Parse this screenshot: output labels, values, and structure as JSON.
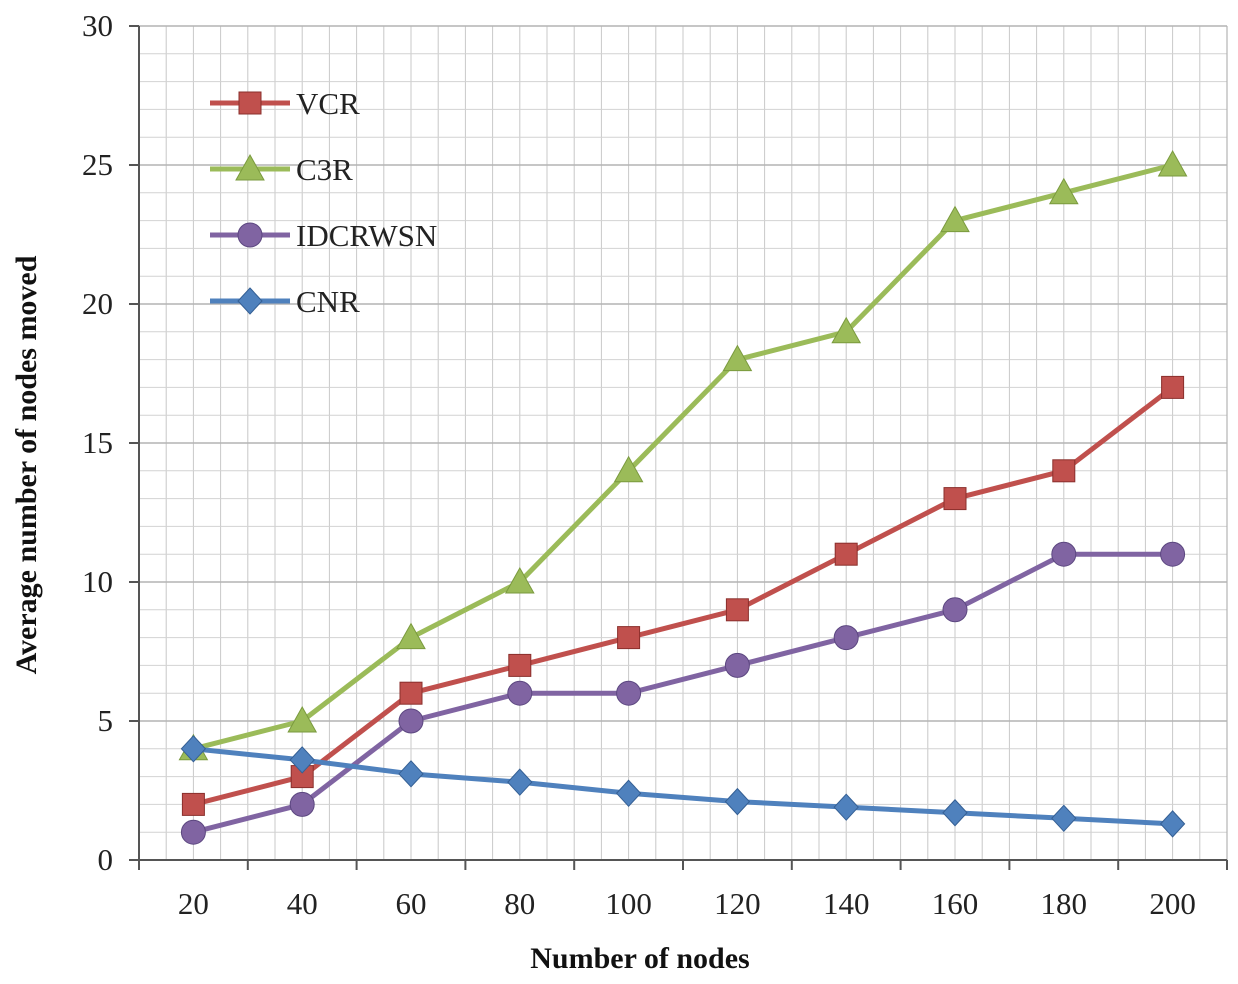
{
  "chart_data": {
    "type": "line",
    "title": "",
    "xlabel": "Number  of nodes",
    "ylabel": "Average number  of nodes moved",
    "x": [
      20,
      40,
      60,
      80,
      100,
      120,
      140,
      160,
      180,
      200
    ],
    "x_tick_labels": [
      "20",
      "40",
      "60",
      "80",
      "100",
      "120",
      "140",
      "160",
      "180",
      "200"
    ],
    "ylim": [
      0,
      30
    ],
    "y_ticks": [
      0,
      5,
      10,
      15,
      20,
      25,
      30
    ],
    "y_tick_labels": [
      "0",
      "5",
      "10",
      "15",
      "20",
      "25",
      "30"
    ],
    "grid": true,
    "legend_position": "top-left",
    "series": [
      {
        "name": "VCR",
        "marker": "square",
        "color": "#c0504d",
        "values": [
          2,
          3,
          6,
          7,
          8,
          9,
          11,
          13,
          14,
          17
        ]
      },
      {
        "name": "C3R",
        "marker": "triangle",
        "color": "#9bbb59",
        "values": [
          4,
          5,
          8,
          10,
          14,
          18,
          19,
          23,
          24,
          25
        ]
      },
      {
        "name": "IDCRWSN",
        "marker": "circle",
        "color": "#8064a2",
        "values": [
          1,
          2,
          5,
          6,
          6,
          7,
          8,
          9,
          11,
          11
        ]
      },
      {
        "name": "CNR",
        "marker": "diamond",
        "color": "#4f81bd",
        "values": [
          4,
          3.6,
          3.1,
          2.8,
          2.4,
          2.1,
          1.9,
          1.7,
          1.5,
          1.3
        ]
      }
    ]
  }
}
